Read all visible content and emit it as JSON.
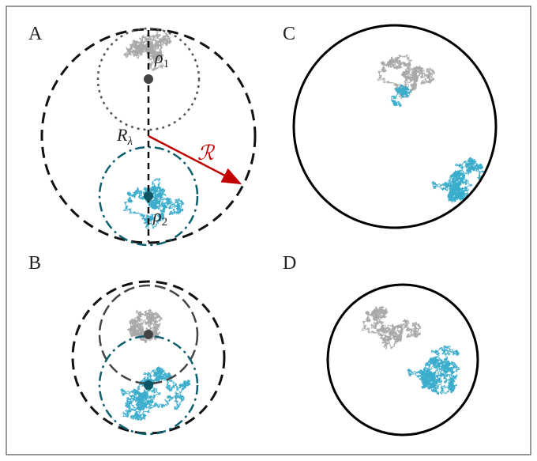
{
  "panels": [
    {
      "label": "A"
    },
    {
      "label": "B"
    },
    {
      "label": "C"
    },
    {
      "label": "D"
    }
  ],
  "annotations": {
    "rho1": {
      "symbol": "ρ",
      "subscript": "1"
    },
    "rho2": {
      "symbol": "ρ",
      "subscript": "2"
    },
    "r_lambda": {
      "symbol": "R",
      "subscript": "λ"
    },
    "radius": "ℛ"
  }
}
